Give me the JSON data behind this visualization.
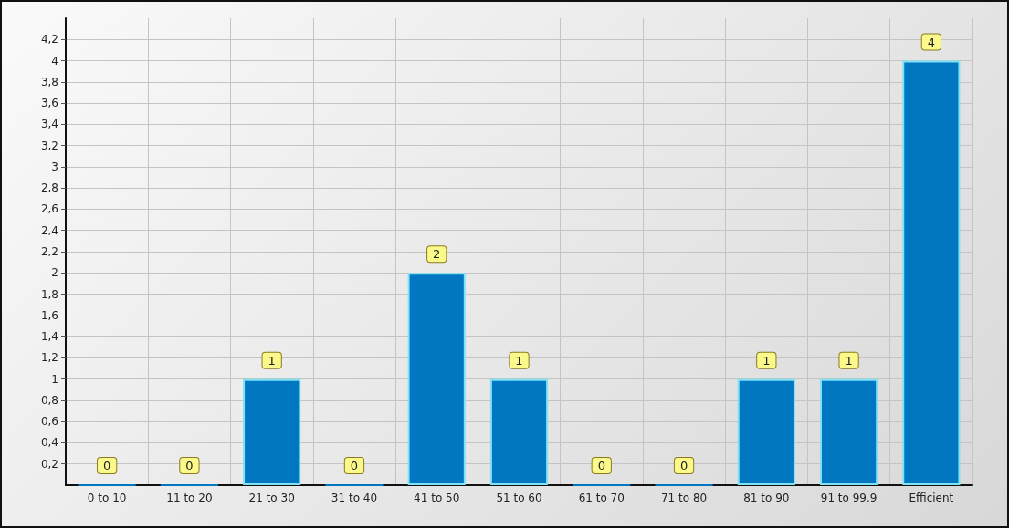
{
  "chart_data": {
    "type": "bar",
    "categories": [
      "0 to 10",
      "11 to 20",
      "21 to 30",
      "31 to 40",
      "41 to 50",
      "51 to 60",
      "61 to 70",
      "71 to 80",
      "81 to 90",
      "91 to 99.9",
      "Efficient"
    ],
    "values": [
      0,
      0,
      1,
      0,
      2,
      1,
      0,
      0,
      1,
      1,
      4
    ],
    "color": "#0077c0",
    "ylim": [
      0,
      4.4
    ],
    "yticks": [
      {
        "value": 0.2,
        "label": "0,2"
      },
      {
        "value": 0.4,
        "label": "0,4"
      },
      {
        "value": 0.6,
        "label": "0,6"
      },
      {
        "value": 0.8,
        "label": "0,8"
      },
      1,
      {
        "value": 1.2,
        "label": "1,2"
      },
      {
        "value": 1.4,
        "label": "1,4"
      },
      {
        "value": 1.6,
        "label": "1,6"
      },
      {
        "value": 1.8,
        "label": "1,8"
      },
      2,
      {
        "value": 2.2,
        "label": "2,2"
      },
      {
        "value": 2.4,
        "label": "2,4"
      },
      {
        "value": 2.6,
        "label": "2,6"
      },
      {
        "value": 2.8,
        "label": "2,8"
      },
      3,
      {
        "value": 3.2,
        "label": "3,2"
      },
      {
        "value": 3.4,
        "label": "3,4"
      },
      {
        "value": 3.6,
        "label": "3,6"
      },
      {
        "value": 3.8,
        "label": "3,8"
      },
      4,
      {
        "value": 4.2,
        "label": "4,2"
      }
    ],
    "grid": true,
    "data_labels": true
  }
}
